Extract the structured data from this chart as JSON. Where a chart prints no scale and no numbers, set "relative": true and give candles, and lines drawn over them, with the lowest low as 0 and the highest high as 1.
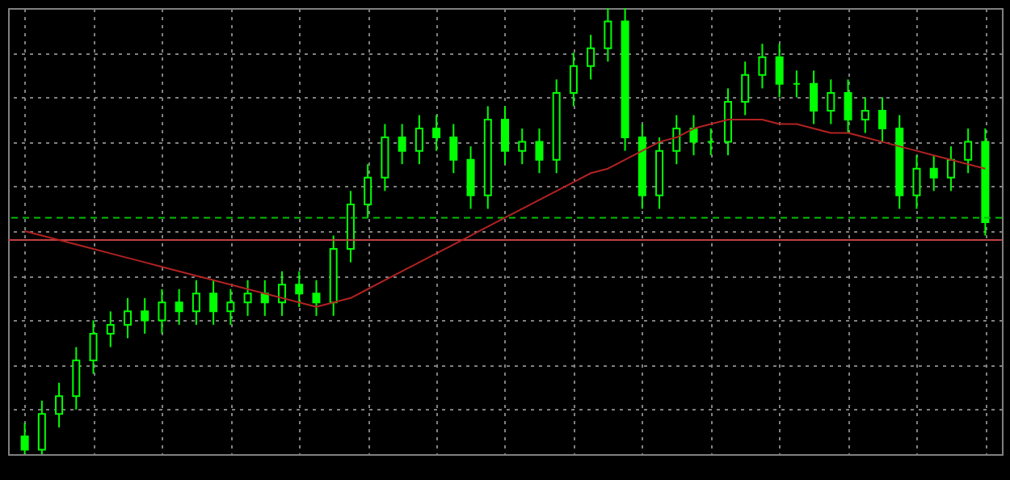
{
  "chart_data": {
    "type": "candlestick",
    "relative": true,
    "color": "#00ff00",
    "grid": true,
    "categories": [
      null,
      null,
      null,
      null,
      null,
      null,
      null,
      null,
      null,
      null,
      null,
      null,
      null,
      null,
      null,
      null,
      null,
      null,
      null,
      null,
      null,
      null,
      null,
      null,
      null,
      null,
      null,
      null,
      null,
      null,
      null,
      null,
      null,
      null,
      null,
      null,
      null,
      null,
      null,
      null,
      null,
      null,
      null,
      null,
      null,
      null,
      null,
      null,
      null,
      null,
      null,
      null,
      null,
      null,
      null,
      null,
      null
    ],
    "ohlc": [
      [
        0.04,
        0.07,
        0.0,
        0.01
      ],
      [
        0.01,
        0.12,
        0.0,
        0.09
      ],
      [
        0.09,
        0.16,
        0.06,
        0.13
      ],
      [
        0.13,
        0.24,
        0.1,
        0.21
      ],
      [
        0.21,
        0.3,
        0.18,
        0.27
      ],
      [
        0.27,
        0.32,
        0.24,
        0.29
      ],
      [
        0.29,
        0.35,
        0.26,
        0.32
      ],
      [
        0.32,
        0.35,
        0.27,
        0.3
      ],
      [
        0.3,
        0.37,
        0.27,
        0.34
      ],
      [
        0.34,
        0.37,
        0.29,
        0.32
      ],
      [
        0.32,
        0.39,
        0.29,
        0.36
      ],
      [
        0.36,
        0.39,
        0.29,
        0.32
      ],
      [
        0.32,
        0.37,
        0.29,
        0.34
      ],
      [
        0.34,
        0.39,
        0.31,
        0.36
      ],
      [
        0.36,
        0.39,
        0.31,
        0.34
      ],
      [
        0.34,
        0.41,
        0.31,
        0.38
      ],
      [
        0.38,
        0.41,
        0.33,
        0.36
      ],
      [
        0.36,
        0.39,
        0.31,
        0.34
      ],
      [
        0.34,
        0.49,
        0.31,
        0.46
      ],
      [
        0.46,
        0.59,
        0.43,
        0.56
      ],
      [
        0.56,
        0.65,
        0.53,
        0.62
      ],
      [
        0.62,
        0.74,
        0.59,
        0.71
      ],
      [
        0.71,
        0.74,
        0.65,
        0.68
      ],
      [
        0.68,
        0.76,
        0.65,
        0.73
      ],
      [
        0.73,
        0.76,
        0.68,
        0.71
      ],
      [
        0.71,
        0.74,
        0.63,
        0.66
      ],
      [
        0.66,
        0.69,
        0.55,
        0.58
      ],
      [
        0.58,
        0.78,
        0.55,
        0.75
      ],
      [
        0.75,
        0.78,
        0.65,
        0.68
      ],
      [
        0.68,
        0.73,
        0.65,
        0.7
      ],
      [
        0.7,
        0.73,
        0.63,
        0.66
      ],
      [
        0.66,
        0.84,
        0.63,
        0.81
      ],
      [
        0.81,
        0.9,
        0.78,
        0.87
      ],
      [
        0.87,
        0.94,
        0.84,
        0.91
      ],
      [
        0.91,
        1.0,
        0.88,
        0.97
      ],
      [
        0.97,
        1.0,
        0.68,
        0.71
      ],
      [
        0.71,
        0.74,
        0.55,
        0.58
      ],
      [
        0.58,
        0.71,
        0.55,
        0.68
      ],
      [
        0.68,
        0.76,
        0.65,
        0.73
      ],
      [
        0.73,
        0.76,
        0.67,
        0.7
      ],
      [
        0.7,
        0.73,
        0.67,
        0.7
      ],
      [
        0.7,
        0.82,
        0.67,
        0.79
      ],
      [
        0.79,
        0.88,
        0.76,
        0.85
      ],
      [
        0.85,
        0.92,
        0.82,
        0.89
      ],
      [
        0.89,
        0.92,
        0.8,
        0.83
      ],
      [
        0.83,
        0.86,
        0.8,
        0.83
      ],
      [
        0.83,
        0.86,
        0.74,
        0.77
      ],
      [
        0.77,
        0.84,
        0.74,
        0.81
      ],
      [
        0.81,
        0.84,
        0.72,
        0.75
      ],
      [
        0.75,
        0.8,
        0.72,
        0.77
      ],
      [
        0.77,
        0.8,
        0.7,
        0.73
      ],
      [
        0.73,
        0.76,
        0.55,
        0.58
      ],
      [
        0.58,
        0.67,
        0.55,
        0.64
      ],
      [
        0.64,
        0.67,
        0.59,
        0.62
      ],
      [
        0.62,
        0.69,
        0.59,
        0.66
      ],
      [
        0.66,
        0.73,
        0.63,
        0.7
      ],
      [
        0.7,
        0.73,
        0.49,
        0.52
      ]
    ],
    "series": [
      {
        "type": "line",
        "color": "#b22222",
        "values": [
          0.5,
          0.49,
          0.48,
          0.47,
          0.46,
          0.45,
          0.44,
          0.43,
          0.42,
          0.41,
          0.4,
          0.39,
          0.38,
          0.37,
          0.36,
          0.35,
          0.34,
          0.33,
          0.34,
          0.35,
          0.37,
          0.39,
          0.41,
          0.43,
          0.45,
          0.47,
          0.49,
          0.51,
          0.53,
          0.55,
          0.57,
          0.59,
          0.61,
          0.63,
          0.64,
          0.66,
          0.68,
          0.7,
          0.71,
          0.73,
          0.74,
          0.75,
          0.75,
          0.75,
          0.74,
          0.74,
          0.73,
          0.72,
          0.72,
          0.71,
          0.7,
          0.69,
          0.68,
          0.67,
          0.66,
          0.65,
          0.64
        ]
      }
    ],
    "ref_lines": [
      {
        "axis": "y",
        "value": 0.53,
        "color": "#00c000",
        "line_style": "dashed"
      },
      {
        "axis": "y",
        "value": 0.48,
        "color": "#c04040",
        "line_style": "solid"
      }
    ]
  }
}
